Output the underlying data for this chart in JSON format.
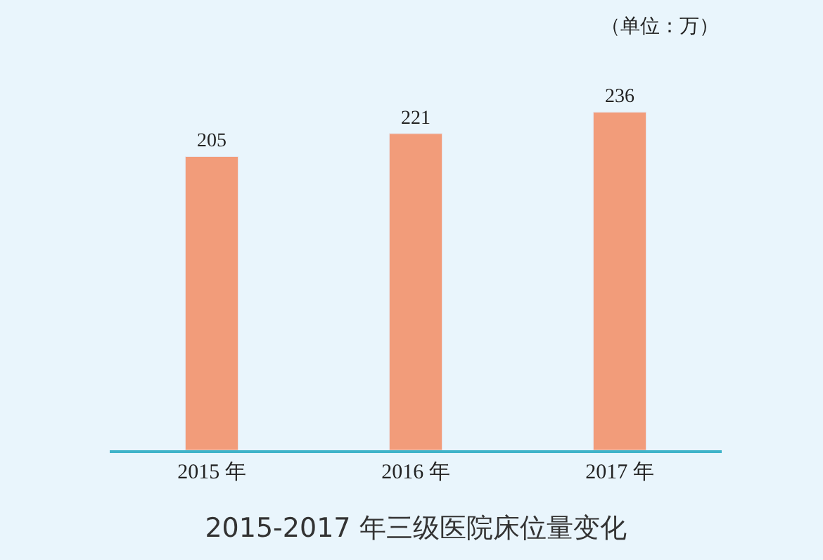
{
  "chart_data": {
    "type": "bar",
    "title": "2015-2017 年三级医院床位量变化",
    "categories": [
      "2015 年",
      "2016 年",
      "2017 年"
    ],
    "values": [
      205,
      221,
      236
    ],
    "color": "#f29c7a",
    "tick_labels": "x",
    "data_labels": true,
    "grid": false,
    "legend": false,
    "annotations": [
      "（单位：万）"
    ]
  }
}
